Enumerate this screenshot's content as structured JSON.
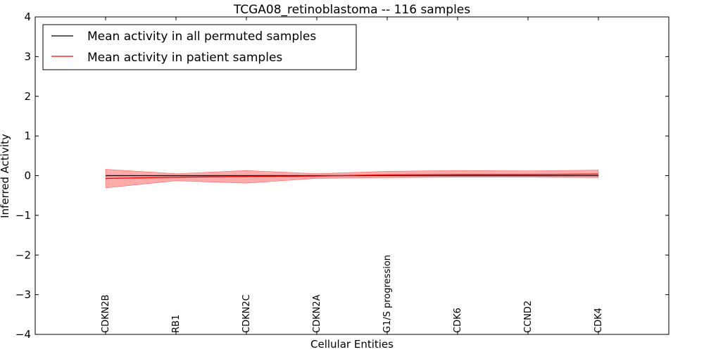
{
  "chart_data": {
    "type": "line",
    "title": "TCGA08_retinoblastoma -- 116 samples",
    "xlabel": "Cellular Entities",
    "ylabel": "Inferred Activity",
    "ylim": [
      -4,
      4
    ],
    "yticks": [
      -4,
      -3,
      -2,
      -1,
      0,
      1,
      2,
      3,
      4
    ],
    "ytick_labels": [
      "−4",
      "−3",
      "−2",
      "−1",
      "0",
      "1",
      "2",
      "3",
      "4"
    ],
    "categories": [
      "CDKN2B",
      "RB1",
      "CDKN2C",
      "CDKN2A",
      "G1/S progression",
      "CDK6",
      "CCND2",
      "CDK4"
    ],
    "series": [
      {
        "name": "Mean activity in all permuted samples",
        "color": "#000000",
        "values": [
          0.0,
          0.0,
          0.0,
          0.0,
          0.0,
          0.0,
          0.0,
          0.0
        ],
        "band_upper": [
          0.02,
          0.02,
          0.02,
          0.02,
          0.02,
          0.02,
          0.02,
          0.02
        ],
        "band_lower": [
          -0.02,
          -0.02,
          -0.02,
          -0.02,
          -0.02,
          -0.02,
          -0.02,
          -0.02
        ]
      },
      {
        "name": "Mean activity in patient samples",
        "color": "#ff0000",
        "band_color": "#ff6666",
        "values": [
          -0.07,
          -0.04,
          -0.02,
          -0.01,
          0.02,
          0.03,
          0.03,
          0.04
        ],
        "band_upper": [
          0.16,
          0.05,
          0.13,
          0.05,
          0.11,
          0.13,
          0.12,
          0.14
        ],
        "band_lower": [
          -0.31,
          -0.13,
          -0.19,
          -0.07,
          -0.05,
          -0.04,
          -0.04,
          -0.05
        ]
      }
    ],
    "legend": {
      "position": "top-left",
      "entries": [
        "Mean activity in all permuted samples",
        "Mean activity in patient samples"
      ]
    },
    "grid": false
  }
}
